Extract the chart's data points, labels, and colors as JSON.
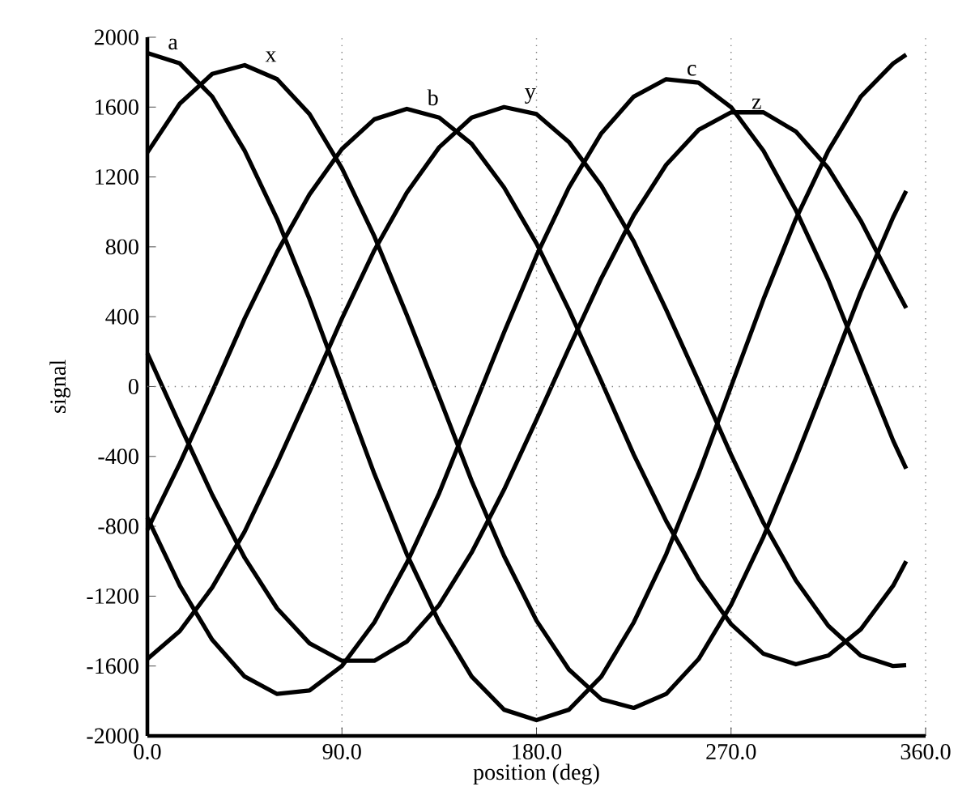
{
  "chart_data": {
    "type": "line",
    "xlabel": "position  (deg)",
    "ylabel": "signal",
    "x": [
      0,
      15,
      30,
      45,
      60,
      75,
      90,
      105,
      120,
      135,
      150,
      165,
      180,
      195,
      210,
      225,
      240,
      255,
      270,
      285,
      300,
      315,
      330,
      345,
      351
    ],
    "series": [
      {
        "name": "a",
        "color": "#000000",
        "values": [
          1910,
          1850,
          1660,
          1350,
          960,
          500,
          0,
          -500,
          -960,
          -1350,
          -1660,
          -1850,
          -1910,
          -1850,
          -1660,
          -1350,
          -960,
          -500,
          0,
          500,
          960,
          1350,
          1660,
          1850,
          1900
        ]
      },
      {
        "name": "x",
        "color": "#000000",
        "values": [
          1340,
          1620,
          1790,
          1840,
          1760,
          1560,
          1250,
          860,
          410,
          -60,
          -540,
          -970,
          -1340,
          -1620,
          -1790,
          -1840,
          -1760,
          -1560,
          -1250,
          -860,
          -410,
          60,
          540,
          970,
          1120
        ]
      },
      {
        "name": "b",
        "color": "#000000",
        "values": [
          -820,
          -440,
          -30,
          390,
          770,
          1100,
          1360,
          1530,
          1590,
          1540,
          1390,
          1140,
          820,
          440,
          30,
          -390,
          -770,
          -1100,
          -1360,
          -1530,
          -1590,
          -1540,
          -1390,
          -1140,
          -1000
        ]
      },
      {
        "name": "y",
        "color": "#000000",
        "values": [
          -1560,
          -1400,
          -1150,
          -830,
          -440,
          -30,
          390,
          780,
          1110,
          1370,
          1540,
          1600,
          1560,
          1400,
          1150,
          830,
          440,
          30,
          -390,
          -780,
          -1110,
          -1370,
          -1540,
          -1600,
          -1595
        ]
      },
      {
        "name": "c",
        "color": "#000000",
        "values": [
          -750,
          -1140,
          -1450,
          -1660,
          -1760,
          -1740,
          -1600,
          -1350,
          -1010,
          -610,
          -150,
          310,
          750,
          1140,
          1450,
          1660,
          1760,
          1740,
          1600,
          1350,
          1010,
          610,
          150,
          -310,
          -470
        ]
      },
      {
        "name": "z",
        "color": "#000000",
        "values": [
          190,
          -220,
          -620,
          -980,
          -1270,
          -1470,
          -1570,
          -1570,
          -1460,
          -1250,
          -950,
          -590,
          -190,
          220,
          620,
          980,
          1270,
          1470,
          1570,
          1570,
          1460,
          1250,
          950,
          590,
          450
        ]
      }
    ],
    "xlim": [
      0,
      360
    ],
    "ylim": [
      -2000,
      2000
    ],
    "xticks": [
      {
        "value": 0,
        "label": "0.0"
      },
      {
        "value": 90,
        "label": "90.0"
      },
      {
        "value": 180,
        "label": "180.0"
      },
      {
        "value": 270,
        "label": "270.0"
      },
      {
        "value": 360,
        "label": "360.0"
      }
    ],
    "yticks": [
      -2000,
      -1600,
      -1200,
      -800,
      -400,
      0,
      400,
      800,
      1200,
      1600,
      2000
    ],
    "grid": "x",
    "ref_lines": [
      {
        "axis": "y",
        "value": 0,
        "line_style": "dotted"
      }
    ]
  }
}
